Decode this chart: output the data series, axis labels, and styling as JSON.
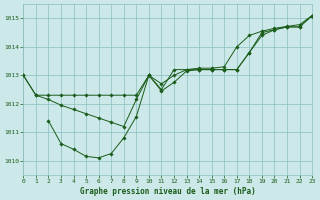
{
  "xlabel": "Graphe pression niveau de la mer (hPa)",
  "bg_color": "#cce8e8",
  "grid_color": "#8bbfbf",
  "line_color": "#1a5c1a",
  "xlim": [
    0,
    23
  ],
  "ylim": [
    1009.5,
    1015.5
  ],
  "yticks": [
    1010,
    1011,
    1012,
    1013,
    1014,
    1015
  ],
  "xticks": [
    0,
    1,
    2,
    3,
    4,
    5,
    6,
    7,
    8,
    9,
    10,
    11,
    12,
    13,
    14,
    15,
    16,
    17,
    18,
    19,
    20,
    21,
    22,
    23
  ],
  "curve1_x": [
    0,
    1,
    2,
    3,
    4,
    5,
    6,
    7,
    8,
    9,
    10,
    11,
    12,
    13,
    14,
    15,
    16,
    17,
    18,
    19,
    20,
    21,
    22,
    23
  ],
  "curve1_y": [
    1013.0,
    1012.3,
    1012.3,
    1012.3,
    1012.3,
    1012.3,
    1012.3,
    1012.3,
    1012.3,
    1012.3,
    1013.0,
    1012.5,
    1013.2,
    1013.2,
    1013.2,
    1013.2,
    1013.2,
    1013.2,
    1013.8,
    1014.5,
    1014.6,
    1014.7,
    1014.7,
    1015.1
  ],
  "curve2_x": [
    2,
    3,
    4,
    5,
    6,
    7,
    8,
    9,
    10,
    11,
    12,
    13,
    14,
    15,
    16,
    17,
    18,
    19,
    20,
    21,
    22,
    23
  ],
  "curve2_y": [
    1011.4,
    1010.6,
    1010.4,
    1010.15,
    1010.1,
    1010.25,
    1010.8,
    1011.55,
    1013.0,
    1012.45,
    1012.75,
    1013.15,
    1013.2,
    1013.2,
    1013.2,
    1013.2,
    1013.8,
    1014.4,
    1014.6,
    1014.7,
    1014.7,
    1015.1
  ],
  "curve3_x": [
    0,
    1,
    2,
    3,
    4,
    5,
    6,
    7,
    8,
    9,
    10,
    11,
    12,
    13,
    14,
    15,
    16,
    17,
    18,
    19,
    20,
    21,
    22,
    23
  ],
  "curve3_y": [
    1013.0,
    1012.3,
    1012.15,
    1011.95,
    1011.8,
    1011.65,
    1011.5,
    1011.35,
    1011.2,
    1012.15,
    1013.0,
    1012.7,
    1013.0,
    1013.2,
    1013.25,
    1013.25,
    1013.3,
    1014.0,
    1014.4,
    1014.55,
    1014.65,
    1014.72,
    1014.78,
    1015.1
  ]
}
